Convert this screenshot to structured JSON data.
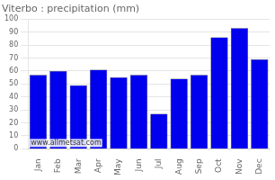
{
  "chart_data": {
    "type": "bar",
    "title": "Viterbo : precipitation (mm)",
    "categories": [
      "Jan",
      "Feb",
      "Mar",
      "Apr",
      "May",
      "Jun",
      "Jul",
      "Aug",
      "Sep",
      "Oct",
      "Nov",
      "Dec"
    ],
    "values": [
      57,
      60,
      49,
      61,
      55,
      57,
      27,
      54,
      57,
      86,
      93,
      69
    ],
    "color": "#0000ee",
    "ylim": [
      0,
      100
    ],
    "yticks": [
      0,
      10,
      20,
      30,
      40,
      50,
      60,
      70,
      80,
      90,
      100
    ],
    "grid": true,
    "annotation": "www.allmetsat.com"
  }
}
